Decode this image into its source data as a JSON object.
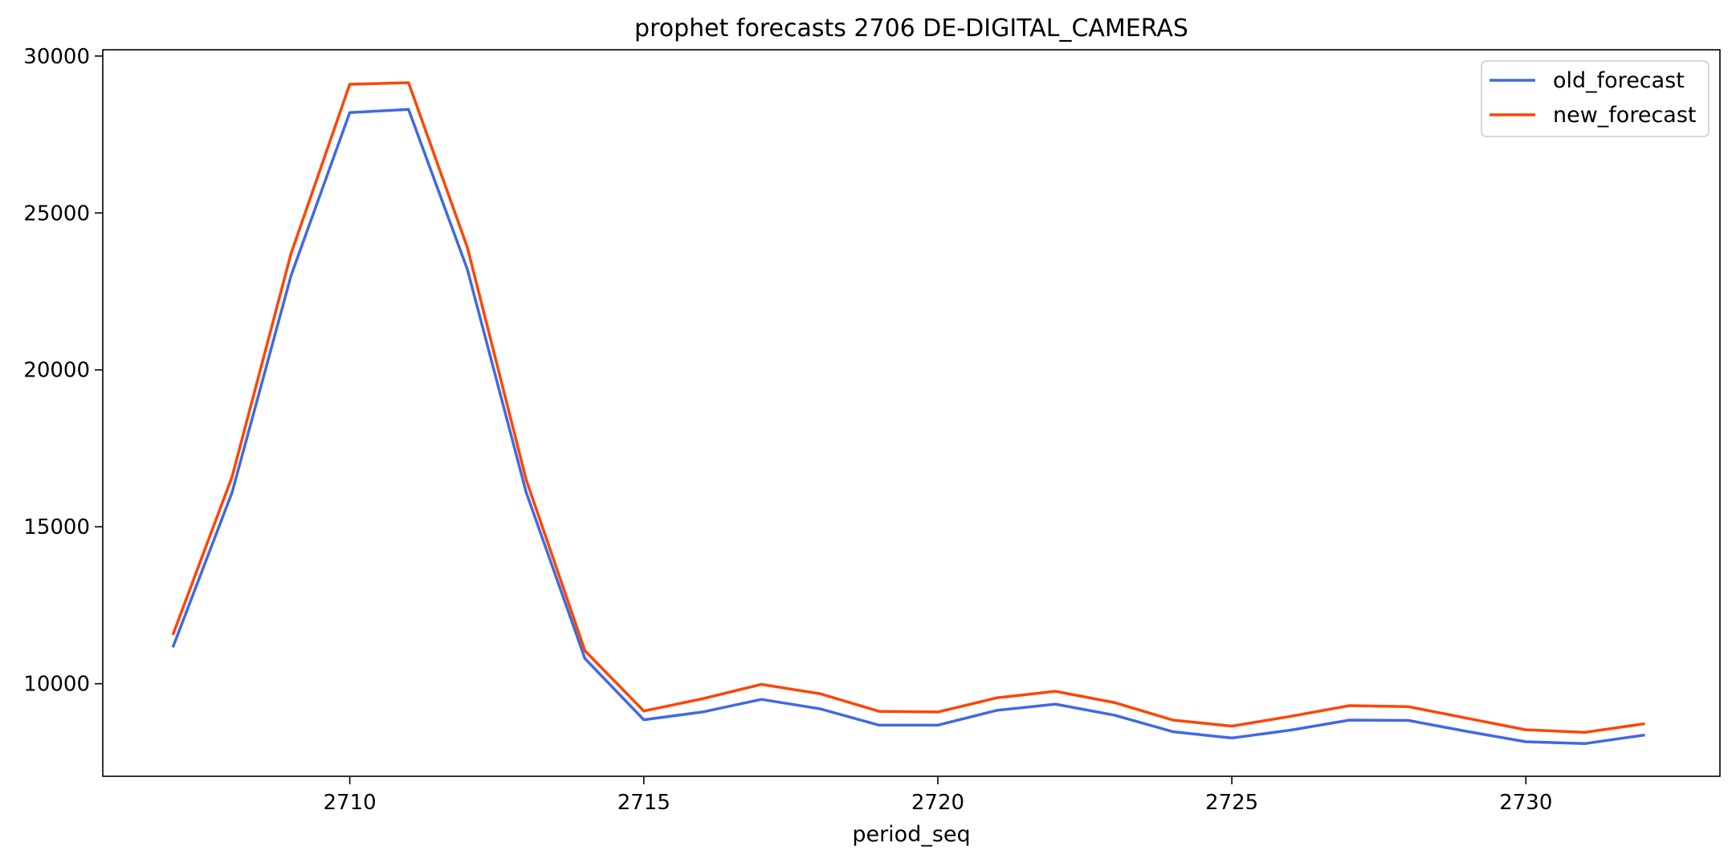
{
  "chart_data": {
    "type": "line",
    "title": "prophet forecasts 2706 DE-DIGITAL_CAMERAS",
    "xlabel": "period_seq",
    "ylabel": "",
    "x": [
      2707,
      2708,
      2709,
      2710,
      2711,
      2712,
      2713,
      2714,
      2715,
      2716,
      2717,
      2718,
      2719,
      2720,
      2721,
      2722,
      2723,
      2724,
      2725,
      2726,
      2727,
      2728,
      2729,
      2730,
      2731,
      2732
    ],
    "series": [
      {
        "name": "old_forecast",
        "color": "#4169e1",
        "values": [
          11200,
          16100,
          23000,
          28200,
          28300,
          23200,
          16100,
          10800,
          8850,
          9100,
          9500,
          9200,
          8680,
          8680,
          9150,
          9350,
          9000,
          8470,
          8270,
          8520,
          8840,
          8830,
          8480,
          8150,
          8090,
          8360
        ]
      },
      {
        "name": "new_forecast",
        "color": "#ff4500",
        "values": [
          11600,
          16600,
          23700,
          29100,
          29150,
          23900,
          16500,
          11050,
          9130,
          9520,
          9980,
          9680,
          9120,
          9100,
          9550,
          9760,
          9400,
          8840,
          8650,
          8960,
          9300,
          9270,
          8900,
          8530,
          8450,
          8720
        ]
      }
    ],
    "xticks": [
      2710,
      2715,
      2720,
      2725,
      2730
    ],
    "xtick_labels": [
      "2710",
      "2715",
      "2720",
      "2725",
      "2730"
    ],
    "yticks": [
      10000,
      15000,
      20000,
      25000,
      30000
    ],
    "ytick_labels": [
      "10000",
      "15000",
      "20000",
      "25000",
      "30000"
    ],
    "xlim": [
      2705.8,
      2733.3
    ],
    "ylim": [
      7050,
      30200
    ],
    "grid": false,
    "legend_position": "upper right"
  }
}
